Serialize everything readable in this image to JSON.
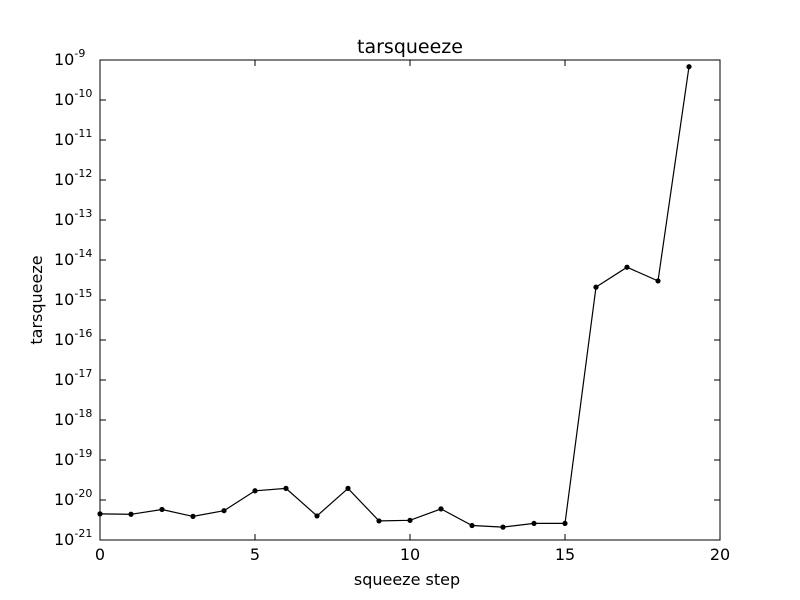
{
  "chart_data": {
    "type": "line",
    "title": "tarsqueeze",
    "xlabel": "squeeze step",
    "ylabel": "tarsqueeze",
    "xlim": [
      0,
      20
    ],
    "ylim": [
      1e-21,
      1e-09
    ],
    "yscale": "log",
    "grid": false,
    "x_ticks": [
      0,
      5,
      10,
      15,
      20
    ],
    "y_tick_exponents": [
      -21,
      -20,
      -19,
      -18,
      -17,
      -16,
      -15,
      -14,
      -13,
      -12,
      -11,
      -10,
      -9
    ],
    "colors": {
      "line": "#000000",
      "marker": "#000000"
    },
    "series": [
      {
        "x": [
          0,
          1,
          2,
          3,
          4,
          5,
          6,
          7,
          8,
          9,
          10,
          11,
          12,
          13,
          14,
          15,
          16,
          17,
          18,
          19
        ],
        "values": [
          4.5e-21,
          4.4e-21,
          5.8e-21,
          3.9e-21,
          5.4e-21,
          1.7e-20,
          1.95e-20,
          4e-21,
          1.95e-20,
          3e-21,
          3.1e-21,
          6e-21,
          2.3e-21,
          2.1e-21,
          2.6e-21,
          2.6e-21,
          2.1e-15,
          6.6e-15,
          3e-15,
          6.8e-10
        ]
      }
    ]
  }
}
